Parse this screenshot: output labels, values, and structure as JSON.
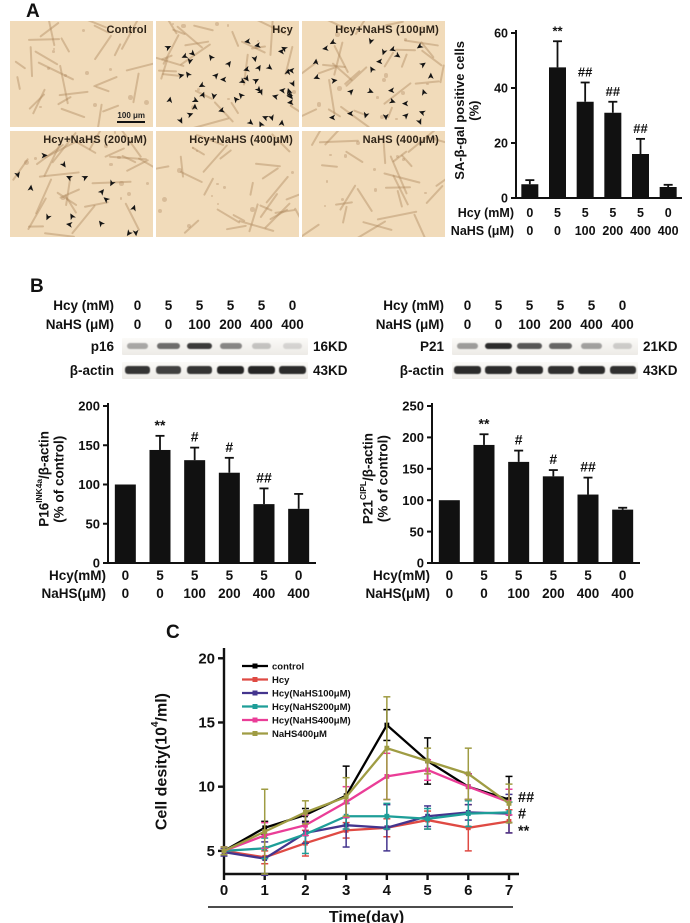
{
  "figure": {
    "panelA_label": "A",
    "panelB_label": "B",
    "panelC_label": "C"
  },
  "panelA": {
    "image_bg": "#f1dbba",
    "images": [
      {
        "label": "Control",
        "arrow_count": 0,
        "scale_bar": "100 μm"
      },
      {
        "label": "Hcy",
        "arrow_count": 48
      },
      {
        "label": "Hcy+NaHS (100μM)",
        "arrow_count": 27
      },
      {
        "label": "Hcy+NaHS (200μM)",
        "arrow_count": 16
      },
      {
        "label": "Hcy+NaHS (400μM)",
        "arrow_count": 0
      },
      {
        "label": "NaHS (400μM)",
        "arrow_count": 0
      }
    ]
  },
  "panelB": {
    "left": {
      "header_rows": [
        {
          "label": "Hcy (mM)",
          "values": [
            "0",
            "5",
            "5",
            "5",
            "5",
            "0"
          ]
        },
        {
          "label": "NaHS (μM)",
          "values": [
            "0",
            "0",
            "100",
            "200",
            "400",
            "400"
          ]
        }
      ],
      "blots": [
        {
          "label": "p16",
          "kd": "16KD",
          "intensities": [
            0.35,
            0.62,
            0.85,
            0.5,
            0.22,
            0.14
          ]
        },
        {
          "label": "β-actin",
          "kd": "43KD",
          "intensities": [
            0.88,
            0.82,
            0.88,
            0.95,
            0.95,
            0.92
          ]
        }
      ]
    },
    "right": {
      "header_rows": [
        {
          "label": "Hcy (mM)",
          "values": [
            "0",
            "5",
            "5",
            "5",
            "5",
            "0"
          ]
        },
        {
          "label": "NaHS (μM)",
          "values": [
            "0",
            "0",
            "100",
            "200",
            "400",
            "400"
          ]
        }
      ],
      "blots": [
        {
          "label": "P21",
          "kd": "21KD",
          "intensities": [
            0.4,
            0.92,
            0.72,
            0.65,
            0.38,
            0.18
          ]
        },
        {
          "label": "β-actin",
          "kd": "43KD",
          "intensities": [
            0.92,
            0.92,
            0.92,
            0.9,
            0.92,
            0.9
          ]
        }
      ]
    }
  },
  "chart_data": [
    {
      "type": "bar",
      "name": "sa-b-gal-positive-cells",
      "ylabel_lines": [
        [
          {
            "t": "SA-β-gal positive cells"
          }
        ],
        [
          {
            "t": "(%)"
          }
        ]
      ],
      "ylim": [
        0,
        60
      ],
      "yticks": [
        0,
        20,
        40,
        60
      ],
      "values": [
        5,
        47.5,
        35,
        31,
        16,
        4
      ],
      "errors": [
        1.5,
        9.5,
        7,
        4,
        5.5,
        0.8
      ],
      "sig": [
        "",
        "**",
        "##",
        "##",
        "##",
        ""
      ],
      "rows": [
        {
          "label": "Hcy (mM)",
          "values": [
            "0",
            "5",
            "5",
            "5",
            "5",
            "0"
          ]
        },
        {
          "label": "NaHS (μM)",
          "values": [
            "0",
            "0",
            "100",
            "200",
            "400",
            "400"
          ]
        }
      ],
      "bar_color": "#111111"
    },
    {
      "type": "bar",
      "name": "p16-quantification",
      "ylabel_lines": [
        [
          {
            "t": "P16"
          },
          {
            "t": "INK4a",
            "sup": true
          },
          {
            "t": "/β-actin"
          }
        ],
        [
          {
            "t": "(% of control)"
          }
        ]
      ],
      "ylim": [
        0,
        200
      ],
      "yticks": [
        0,
        50,
        100,
        150,
        200
      ],
      "values": [
        100,
        144,
        131,
        115,
        75,
        69
      ],
      "errors": [
        0,
        18,
        16,
        19,
        20,
        19
      ],
      "sig": [
        "",
        "**",
        "#",
        "#",
        "##",
        ""
      ],
      "rows": [
        {
          "label": "Hcy(mM)",
          "values": [
            "0",
            "5",
            "5",
            "5",
            "5",
            "0"
          ]
        },
        {
          "label": "NaHS(μM)",
          "values": [
            "0",
            "0",
            "100",
            "200",
            "400",
            "400"
          ]
        }
      ],
      "bar_color": "#111111"
    },
    {
      "type": "bar",
      "name": "p21-quantification",
      "ylabel_lines": [
        [
          {
            "t": "P21"
          },
          {
            "t": "CIPL",
            "sup": true
          },
          {
            "t": "/β-actin"
          }
        ],
        [
          {
            "t": "(% of control)"
          }
        ]
      ],
      "ylim": [
        0,
        250
      ],
      "yticks": [
        0,
        50,
        100,
        150,
        200,
        250
      ],
      "values": [
        100,
        188,
        161,
        138,
        109,
        85
      ],
      "errors": [
        0,
        17,
        18,
        10,
        27,
        3
      ],
      "sig": [
        "",
        "**",
        "#",
        "#",
        "##",
        ""
      ],
      "rows": [
        {
          "label": "Hcy(mM)",
          "values": [
            "0",
            "5",
            "5",
            "5",
            "5",
            "0"
          ]
        },
        {
          "label": "NaHS(μM)",
          "values": [
            "0",
            "0",
            "100",
            "200",
            "400",
            "400"
          ]
        }
      ],
      "bar_color": "#111111"
    },
    {
      "type": "line",
      "name": "cell-density-growth",
      "ylabel_parts": [
        {
          "t": "Cell desity(10"
        },
        {
          "t": "4",
          "sup": true
        },
        {
          "t": "/ml)"
        }
      ],
      "xlabel": "Time(day)",
      "x": [
        0,
        1,
        2,
        3,
        4,
        5,
        6,
        7
      ],
      "ylim": [
        3.2,
        20.8
      ],
      "yticks": [
        5,
        10,
        15,
        20
      ],
      "series": [
        {
          "name": "control",
          "color": "#000000",
          "values": [
            5,
            6.8,
            7.8,
            9.3,
            14.8,
            12,
            10,
            9
          ],
          "errors": [
            0.3,
            0.5,
            0.5,
            2.3,
            1.2,
            1.8,
            1,
            1.8
          ]
        },
        {
          "name": "Hcy",
          "color": "#df4a43",
          "values": [
            5,
            4.5,
            5.6,
            6.6,
            6.8,
            7.4,
            6.8,
            7.3
          ],
          "errors": [
            0.3,
            0.5,
            1,
            0.6,
            0.7,
            0.7,
            1.8,
            0.9
          ]
        },
        {
          "name": "Hcy(NaHS100μM)",
          "color": "#44358e",
          "values": [
            4.9,
            4.4,
            6.4,
            7,
            6.8,
            7.7,
            8,
            7.9
          ],
          "errors": [
            0.3,
            1.3,
            0.8,
            1.7,
            1.8,
            0.8,
            0.6,
            1.5
          ]
        },
        {
          "name": "Hcy(NaHS200μM)",
          "color": "#1e9e98",
          "values": [
            5,
            5.2,
            6.3,
            7.7,
            7.7,
            7.5,
            7.9,
            8
          ],
          "errors": [
            0.3,
            0.8,
            1.5,
            1,
            1,
            0.8,
            1,
            0.8
          ]
        },
        {
          "name": "Hcy(NaHS400μM)",
          "color": "#ea3d97",
          "values": [
            5,
            6.2,
            7,
            8.8,
            10.8,
            11.3,
            10,
            8.8
          ],
          "errors": [
            0.3,
            1,
            0.8,
            1.2,
            1.8,
            0.8,
            1,
            1
          ]
        },
        {
          "name": "NaHS400μM",
          "color": "#9f9c43",
          "values": [
            5,
            6.5,
            8,
            9.2,
            13,
            12,
            11,
            8.7
          ],
          "errors": [
            0.3,
            3.3,
            0.9,
            1.5,
            4,
            1,
            2,
            1.5
          ]
        }
      ],
      "annotations": [
        {
          "text": "##",
          "color": "#e8399a",
          "value": 9.2
        },
        {
          "text": "#",
          "color": "#21a09a",
          "value": 7.9
        },
        {
          "text": "**",
          "color": "#e8413c",
          "value": 6.6
        }
      ]
    }
  ]
}
